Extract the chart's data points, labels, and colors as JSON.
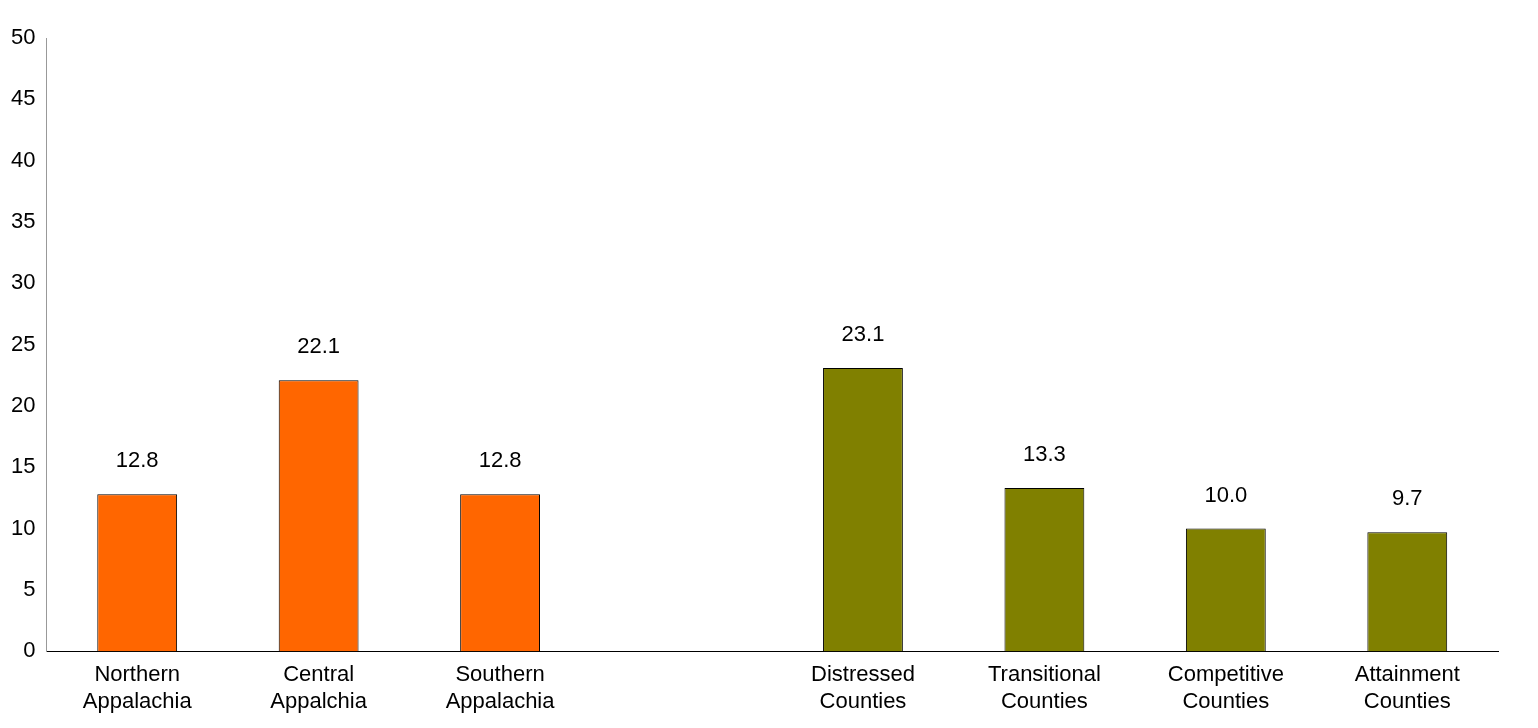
{
  "chart_data": {
    "type": "bar",
    "categories": [
      "Northern Appalachia",
      "Central Appalchia",
      "Southern Appalachia",
      null,
      "Distressed Counties",
      "Transitional Counties",
      "Competitive Counties",
      "Attainment Counties"
    ],
    "values": [
      12.8,
      22.1,
      12.8,
      null,
      23.1,
      13.3,
      10.0,
      9.7
    ],
    "colors": [
      "#ff6600",
      "#ff6600",
      "#ff6600",
      null,
      "#808000",
      "#808000",
      "#808000",
      "#808000"
    ],
    "value_labels": [
      "12.8",
      "22.1",
      "12.8",
      null,
      "23.1",
      "13.3",
      "10.0",
      "9.7"
    ],
    "ylim": [
      0,
      50
    ],
    "yticks": [
      0,
      5,
      10,
      15,
      20,
      25,
      30,
      35,
      40,
      45,
      50
    ],
    "grid": false,
    "legend": false
  }
}
